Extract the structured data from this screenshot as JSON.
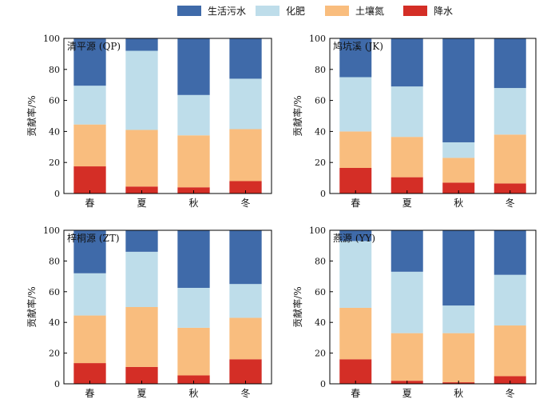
{
  "legend": {
    "items": [
      {
        "label": "生活污水",
        "color": "#3F6AA9"
      },
      {
        "label": "化肥",
        "color": "#BEDDEA"
      },
      {
        "label": "土壤氮",
        "color": "#F9BD7E"
      },
      {
        "label": "降水",
        "color": "#D42E26"
      }
    ]
  },
  "chart_data": [
    {
      "type": "bar",
      "stacked": true,
      "title": "清平源 (QP)",
      "ylabel": "贡献率/%",
      "xlabel": "",
      "ylim": [
        0,
        100
      ],
      "yticks": [
        0,
        20,
        40,
        60,
        80,
        100
      ],
      "categories": [
        "春",
        "夏",
        "秋",
        "冬"
      ],
      "series": [
        {
          "name": "降水",
          "values": [
            17.5,
            4.5,
            4.0,
            8.0
          ]
        },
        {
          "name": "土壤氮",
          "values": [
            27.0,
            36.5,
            33.5,
            33.5
          ]
        },
        {
          "name": "化肥",
          "values": [
            25.0,
            51.0,
            26.0,
            32.5
          ]
        },
        {
          "name": "生活污水",
          "values": [
            30.5,
            8.0,
            36.5,
            26.0
          ]
        }
      ]
    },
    {
      "type": "bar",
      "stacked": true,
      "title": "鸠坑溪 (JK)",
      "ylabel": "贡献率/%",
      "xlabel": "",
      "ylim": [
        0,
        100
      ],
      "yticks": [
        0,
        20,
        40,
        60,
        80,
        100
      ],
      "categories": [
        "春",
        "夏",
        "秋",
        "冬"
      ],
      "series": [
        {
          "name": "降水",
          "values": [
            16.5,
            10.5,
            7.0,
            6.5
          ]
        },
        {
          "name": "土壤氮",
          "values": [
            23.5,
            26.0,
            16.0,
            31.5
          ]
        },
        {
          "name": "化肥",
          "values": [
            35.0,
            32.5,
            10.0,
            30.0
          ]
        },
        {
          "name": "生活污水",
          "values": [
            25.0,
            31.0,
            67.0,
            32.0
          ]
        }
      ]
    },
    {
      "type": "bar",
      "stacked": true,
      "title": "梓桐源 (ZT)",
      "ylabel": "贡献率/%",
      "xlabel": "",
      "ylim": [
        0,
        100
      ],
      "yticks": [
        0,
        20,
        40,
        60,
        80,
        100
      ],
      "categories": [
        "春",
        "夏",
        "秋",
        "冬"
      ],
      "series": [
        {
          "name": "降水",
          "values": [
            13.5,
            11.0,
            5.5,
            16.0
          ]
        },
        {
          "name": "土壤氮",
          "values": [
            31.0,
            39.0,
            31.0,
            27.0
          ]
        },
        {
          "name": "化肥",
          "values": [
            27.5,
            36.0,
            26.0,
            22.0
          ]
        },
        {
          "name": "生活污水",
          "values": [
            28.0,
            14.0,
            37.5,
            35.0
          ]
        }
      ]
    },
    {
      "type": "bar",
      "stacked": true,
      "title": "燕源 (YY)",
      "ylabel": "贡献率/%",
      "xlabel": "",
      "ylim": [
        0,
        100
      ],
      "yticks": [
        0,
        20,
        40,
        60,
        80,
        100
      ],
      "categories": [
        "春",
        "夏",
        "秋",
        "冬"
      ],
      "series": [
        {
          "name": "降水",
          "values": [
            16.0,
            2.0,
            1.0,
            5.0
          ]
        },
        {
          "name": "土壤氮",
          "values": [
            33.5,
            31.0,
            32.0,
            33.0
          ]
        },
        {
          "name": "化肥",
          "values": [
            43.5,
            40.0,
            18.0,
            33.0
          ]
        },
        {
          "name": "生活污水",
          "values": [
            7.0,
            27.0,
            49.0,
            29.0
          ]
        }
      ]
    }
  ]
}
